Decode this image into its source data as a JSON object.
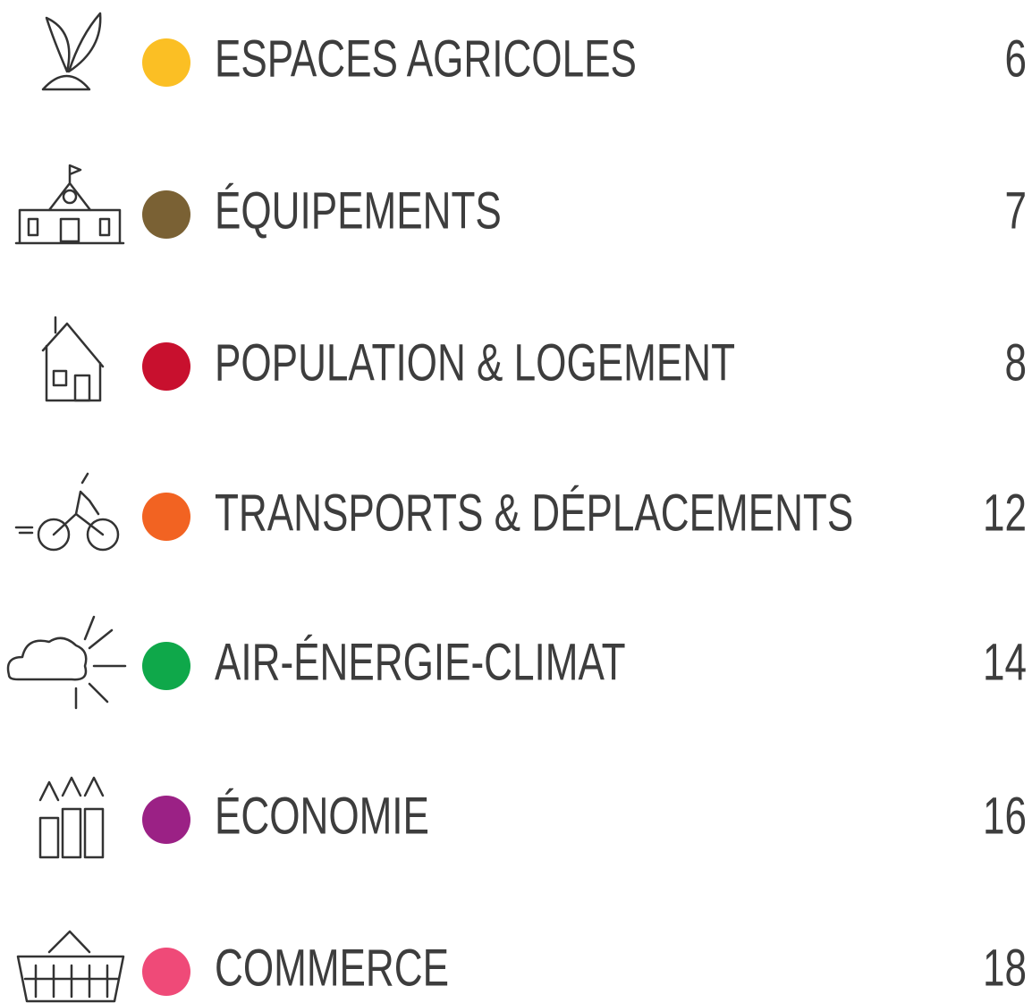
{
  "entries": [
    {
      "title": "ESPACES AGRICOLES",
      "page": "6",
      "color": "#fbbf24"
    },
    {
      "title": "ÉQUIPEMENTS",
      "page": "7",
      "color": "#7a6134"
    },
    {
      "title": "POPULATION & LOGEMENT",
      "page": "8",
      "color": "#c8102e"
    },
    {
      "title": "TRANSPORTS & DÉPLACEMENTS",
      "page": "12",
      "color": "#f26322"
    },
    {
      "title": "AIR-ÉNERGIE-CLIMAT",
      "page": "14",
      "color": "#0fa84a"
    },
    {
      "title": "ÉCONOMIE",
      "page": "16",
      "color": "#9b2185"
    },
    {
      "title": "COMMERCE",
      "page": "18",
      "color": "#ef4a78"
    }
  ]
}
